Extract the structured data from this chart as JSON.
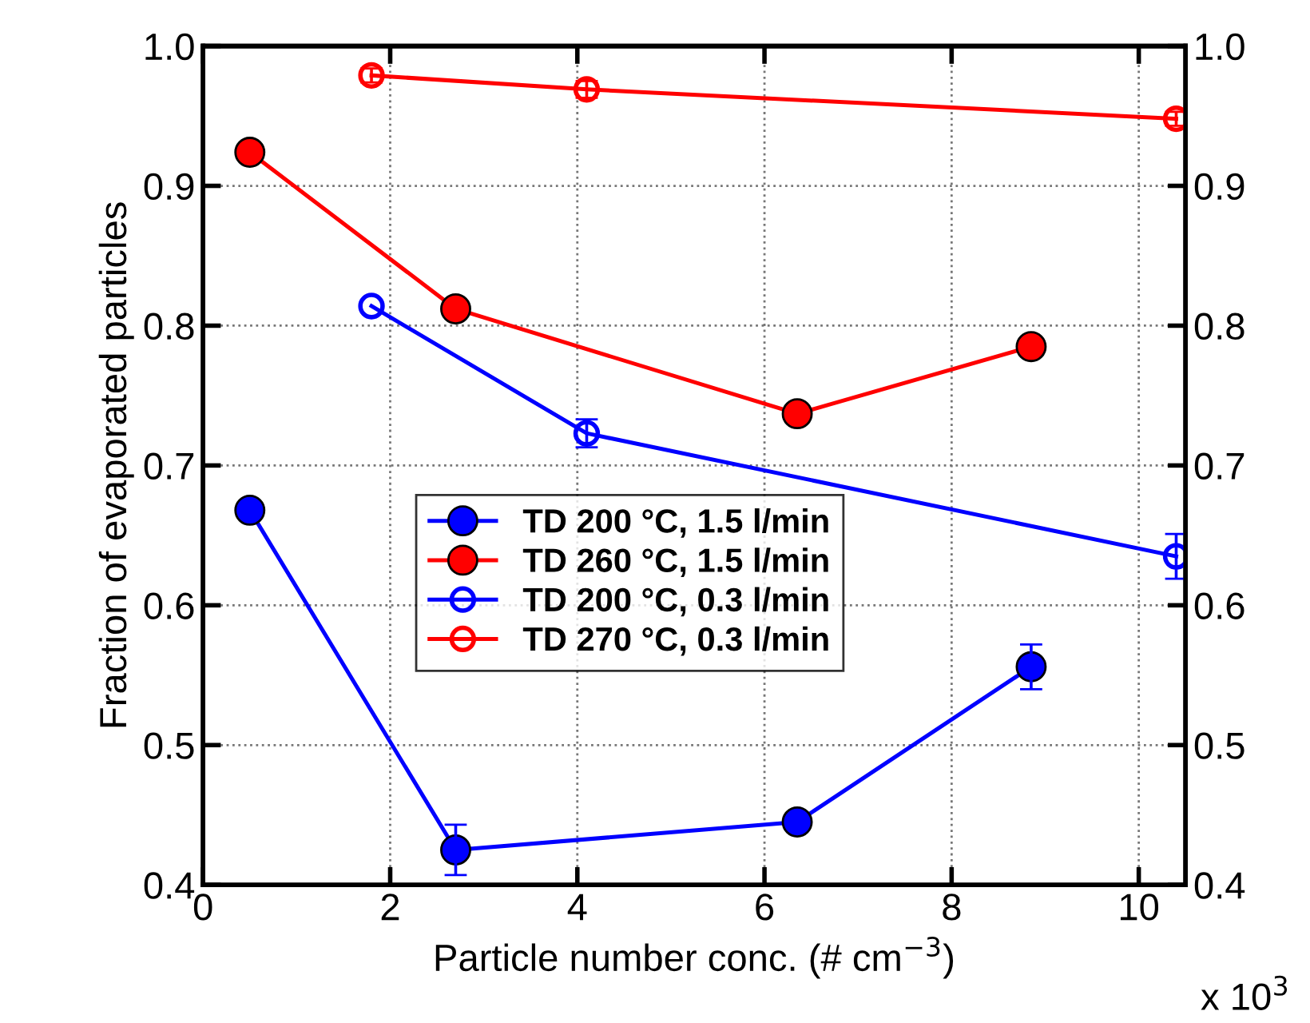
{
  "chart_data": {
    "type": "line",
    "xlabel": "Particle number conc. (# cm$^{−3}$)",
    "ylabel": "Fraction of evaporated particles",
    "annotations": [
      "x 10$^{3}$"
    ],
    "xlim": [
      0,
      10.5
    ],
    "xticks": [
      0,
      2,
      4,
      6,
      8,
      10
    ],
    "ylim": [
      0.4,
      1.0
    ],
    "yticks": [
      0.4,
      0.5,
      0.6,
      0.7,
      0.8,
      0.9,
      {
        "value": 1.0,
        "label": "1.0"
      }
    ],
    "y2lim": [
      0.4,
      1.0
    ],
    "y2ticks": [
      0.4,
      0.5,
      0.6,
      0.7,
      0.8,
      0.9,
      {
        "value": 1.0,
        "label": "1.0"
      }
    ],
    "grid": true,
    "legend": "center left",
    "marker": "circle",
    "line_style": "solid",
    "series": [
      {
        "name": "TD 200 °C, 1.5 l/min",
        "color": "#0000ff",
        "x": [
          0.5,
          2.7,
          6.35,
          8.85
        ],
        "values": [
          0.668,
          0.425,
          0.445,
          0.556
        ],
        "errors": [
          null,
          0.018,
          null,
          0.016
        ]
      },
      {
        "name": "TD 260 °C, 1.5 l/min",
        "color": "#ff0000",
        "x": [
          0.5,
          2.7,
          6.35,
          8.85
        ],
        "values": [
          0.924,
          0.812,
          0.737,
          0.785
        ],
        "errors": [
          null,
          null,
          null,
          null
        ]
      },
      {
        "name": "TD 200 °C, 0.3 l/min",
        "color": "#0000ff",
        "x": [
          1.8,
          4.1,
          10.4
        ],
        "values": [
          0.814,
          0.723,
          0.635
        ],
        "errors": [
          null,
          0.01,
          0.016
        ]
      },
      {
        "name": "TD 270 °C, 0.3 l/min",
        "color": "#ff0000",
        "x": [
          1.8,
          4.1,
          10.4
        ],
        "values": [
          0.979,
          0.969,
          0.948
        ],
        "errors": [
          0.005,
          0.006,
          0.005
        ]
      }
    ]
  }
}
